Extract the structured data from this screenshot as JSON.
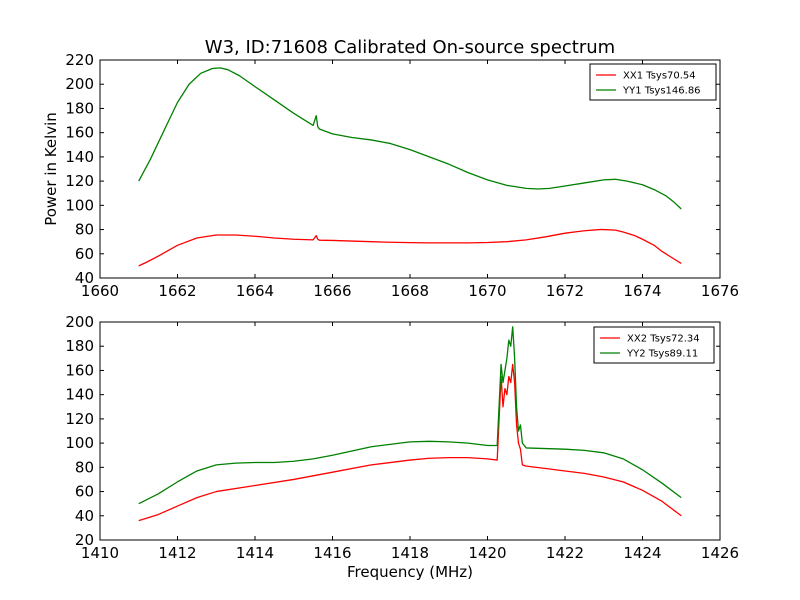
{
  "chart_data": [
    {
      "type": "line",
      "title": "W3, ID:71608 Calibrated On-source spectrum",
      "xlabel": "",
      "ylabel": "Power in Kelvin",
      "xlim": [
        1660,
        1676
      ],
      "ylim": [
        40,
        220
      ],
      "xticks": [
        "1660",
        "1662",
        "1664",
        "1666",
        "1668",
        "1670",
        "1672",
        "1674",
        "1676"
      ],
      "yticks": [
        "40",
        "60",
        "80",
        "100",
        "120",
        "140",
        "160",
        "180",
        "200",
        "220"
      ],
      "legend_position": "top-right",
      "series": [
        {
          "name": "XX1 Tsys70.54",
          "color": "#ff0000",
          "x": [
            1661.0,
            1661.2,
            1661.5,
            1662.0,
            1662.5,
            1663.0,
            1663.5,
            1664.0,
            1664.5,
            1665.0,
            1665.5,
            1665.58,
            1665.62,
            1665.66,
            1666.0,
            1666.5,
            1667.0,
            1667.5,
            1668.0,
            1668.5,
            1669.0,
            1669.5,
            1670.0,
            1670.5,
            1671.0,
            1671.5,
            1672.0,
            1672.5,
            1672.9,
            1673.0,
            1673.3,
            1673.5,
            1673.8,
            1674.0,
            1674.3,
            1674.5,
            1674.8,
            1675.0
          ],
          "values": [
            50,
            53,
            58,
            67,
            73,
            75.5,
            75.5,
            74.5,
            73,
            72,
            71.5,
            75,
            72,
            71.2,
            71,
            70.5,
            70,
            69.5,
            69.2,
            69,
            69,
            69,
            69.3,
            70,
            71.5,
            74,
            77,
            79,
            80,
            80,
            79.5,
            78,
            75,
            72,
            67,
            62,
            56,
            52
          ]
        },
        {
          "name": "YY1 Tsys146.86",
          "color": "#008000",
          "x": [
            1661.0,
            1661.3,
            1661.7,
            1662.0,
            1662.3,
            1662.6,
            1662.9,
            1663.1,
            1663.3,
            1663.6,
            1664.0,
            1664.5,
            1665.0,
            1665.5,
            1665.58,
            1665.62,
            1665.66,
            1666.0,
            1666.5,
            1667.0,
            1667.5,
            1668.0,
            1668.5,
            1669.0,
            1669.5,
            1670.0,
            1670.5,
            1671.0,
            1671.3,
            1671.6,
            1672.0,
            1672.5,
            1673.0,
            1673.3,
            1673.6,
            1674.0,
            1674.3,
            1674.6,
            1674.8,
            1675.0
          ],
          "values": [
            120,
            138,
            165,
            185,
            200,
            209,
            213,
            213.5,
            212,
            207,
            198,
            187,
            176,
            166,
            174,
            165,
            163,
            159,
            156,
            154,
            151,
            146,
            140,
            134,
            127,
            121,
            116.5,
            114,
            113.5,
            114,
            116,
            118.5,
            121,
            121.5,
            120,
            117,
            113,
            108,
            103,
            97
          ]
        }
      ]
    },
    {
      "type": "line",
      "title": "",
      "xlabel": "Frequency (MHz)",
      "ylabel": "",
      "xlim": [
        1410,
        1426
      ],
      "ylim": [
        20,
        200
      ],
      "xticks": [
        "1410",
        "1412",
        "1414",
        "1416",
        "1418",
        "1420",
        "1422",
        "1424",
        "1426"
      ],
      "yticks": [
        "20",
        "40",
        "60",
        "80",
        "100",
        "120",
        "140",
        "160",
        "180",
        "200"
      ],
      "legend_position": "top-right",
      "series": [
        {
          "name": "XX2 Tsys72.34",
          "color": "#ff0000",
          "x": [
            1411.0,
            1411.5,
            1412.0,
            1412.5,
            1413.0,
            1414.0,
            1415.0,
            1416.0,
            1417.0,
            1418.0,
            1418.5,
            1419.0,
            1419.5,
            1420.0,
            1420.25,
            1420.35,
            1420.4,
            1420.45,
            1420.5,
            1420.55,
            1420.6,
            1420.65,
            1420.7,
            1420.75,
            1420.8,
            1420.85,
            1420.9,
            1421.0,
            1421.5,
            1422.0,
            1422.5,
            1423.0,
            1423.5,
            1424.0,
            1424.5,
            1425.0
          ],
          "values": [
            36,
            41,
            48,
            55,
            60,
            65,
            70,
            76,
            82,
            86,
            87.5,
            88,
            88,
            87,
            86,
            155,
            130,
            145,
            140,
            155,
            150,
            165,
            150,
            115,
            100,
            95,
            82,
            81,
            79,
            77,
            75,
            72,
            68,
            61,
            52,
            40
          ]
        },
        {
          "name": "YY2 Tsys89.11",
          "color": "#008000",
          "x": [
            1411.0,
            1411.5,
            1412.0,
            1412.5,
            1413.0,
            1413.5,
            1414.0,
            1414.5,
            1415.0,
            1415.5,
            1416.0,
            1417.0,
            1418.0,
            1418.5,
            1419.0,
            1419.5,
            1420.0,
            1420.25,
            1420.35,
            1420.4,
            1420.45,
            1420.5,
            1420.55,
            1420.6,
            1420.65,
            1420.7,
            1420.75,
            1420.8,
            1420.85,
            1420.9,
            1421.0,
            1421.5,
            1422.0,
            1422.5,
            1423.0,
            1423.5,
            1424.0,
            1424.5,
            1425.0
          ],
          "values": [
            50,
            58,
            68,
            77,
            82,
            83.5,
            84,
            84,
            85,
            87,
            90,
            97,
            101,
            101.5,
            101,
            100,
            98,
            98,
            165,
            150,
            160,
            170,
            185,
            180,
            196,
            170,
            130,
            110,
            115,
            100,
            96,
            95.5,
            95,
            94,
            92,
            87,
            78,
            67,
            55
          ]
        }
      ]
    }
  ]
}
